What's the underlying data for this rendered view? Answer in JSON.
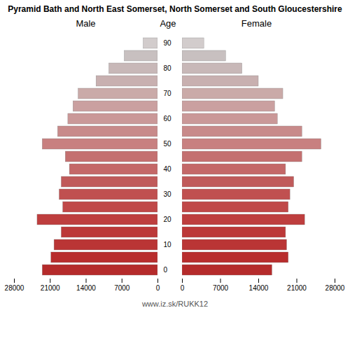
{
  "chart_data": {
    "type": "pyramid",
    "title": "Pyramid Bath and North East Somerset, North Somerset and South Gloucestershire",
    "orientation": "horizontal",
    "ylabel": "Age",
    "categories": [
      "0",
      null,
      "10",
      null,
      "20",
      null,
      "30",
      null,
      "40",
      null,
      "50",
      null,
      "60",
      null,
      "70",
      null,
      "80",
      null,
      "90"
    ],
    "series": [
      {
        "name": "Male",
        "values": [
          22500,
          20800,
          20200,
          18800,
          23500,
          18500,
          19200,
          18800,
          17200,
          18000,
          22500,
          19500,
          17500,
          16500,
          15500,
          12000,
          9500,
          6500,
          2800
        ]
      },
      {
        "name": "Female",
        "values": [
          16500,
          19500,
          19200,
          19000,
          22500,
          19500,
          19800,
          20500,
          19000,
          22000,
          25500,
          22000,
          17500,
          17000,
          18500,
          14000,
          11000,
          8000,
          4000
        ]
      }
    ],
    "colors": [
      "#b52b2b",
      "#b82d2d",
      "#ba3535",
      "#bc3838",
      "#be3e3e",
      "#c04848",
      "#c05050",
      "#c05a5a",
      "#c46868",
      "#c47070",
      "#c88080",
      "#c88a8a",
      "#ca9898",
      "#caa0a0",
      "#caaaa8",
      "#c8b0b0",
      "#c8b8b8",
      "#c8c0c0",
      "#d2cccc"
    ],
    "xlim": [
      0,
      28000
    ],
    "xticks": [
      0,
      7000,
      14000,
      21000,
      28000
    ],
    "caption": "www.iz.sk/RUKK12"
  }
}
